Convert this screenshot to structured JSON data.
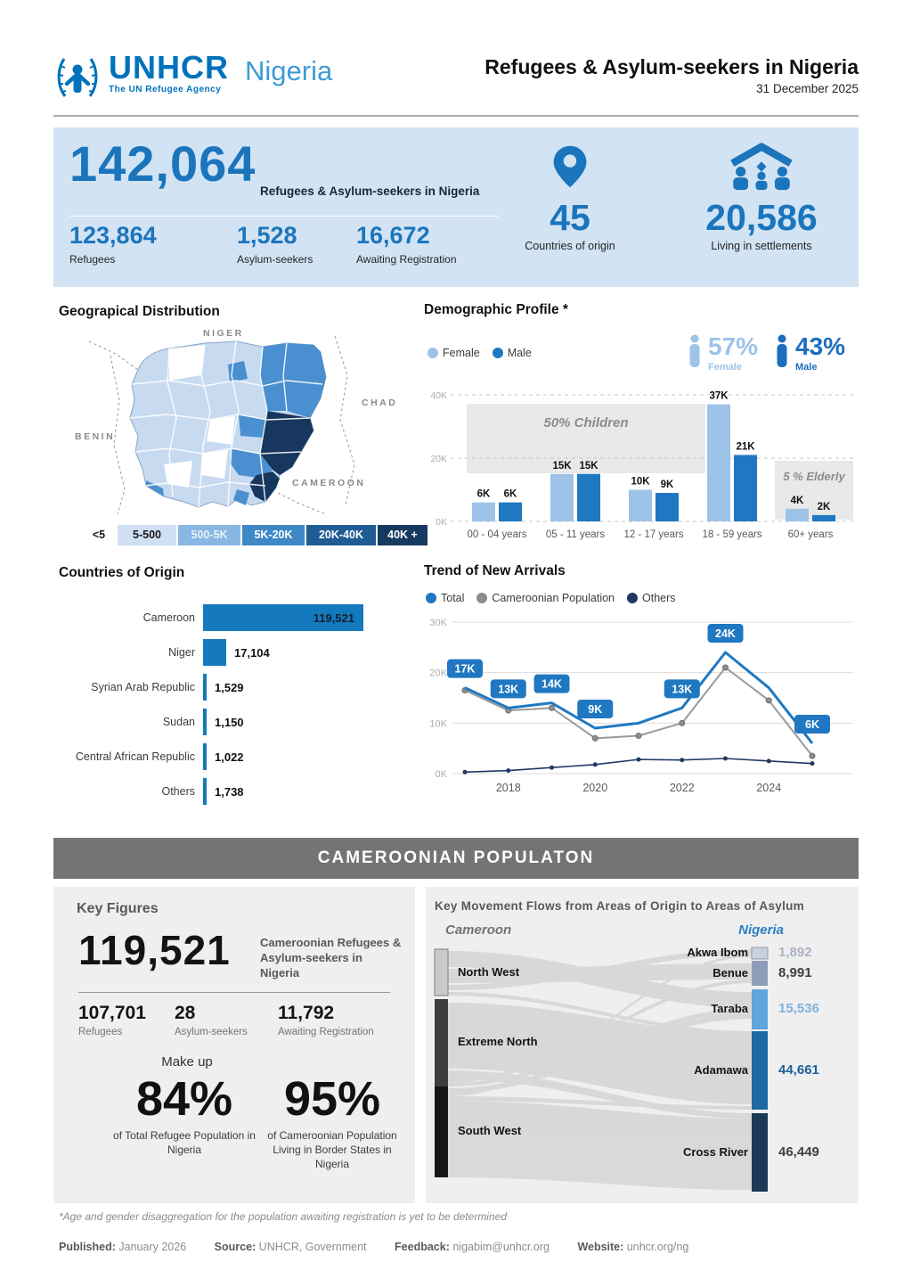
{
  "header": {
    "logo": {
      "name": "UNHCR",
      "tagline": "The UN Refugee Agency",
      "region": "Nigeria"
    },
    "title": "Refugees & Asylum-seekers in Nigeria",
    "date": "31 December 2025"
  },
  "summary": {
    "total": {
      "value": "142,064",
      "label": "Refugees & Asylum-seekers in Nigeria"
    },
    "breakdown": [
      {
        "value": "123,864",
        "label": "Refugees"
      },
      {
        "value": "1,528",
        "label": "Asylum-seekers"
      },
      {
        "value": "16,672",
        "label": "Awaiting Registration"
      }
    ],
    "origin_countries": {
      "value": "45",
      "label": "Countries of origin"
    },
    "settlements": {
      "value": "20,586",
      "label": "Living in settlements"
    }
  },
  "geography": {
    "title": "Geograpical Distribution",
    "neighbors": [
      "NIGER",
      "CHAD",
      "BENIN",
      "CAMEROON"
    ],
    "legend": [
      {
        "label": "<5",
        "color": "#ffffff",
        "text": "#1a1a1a"
      },
      {
        "label": "5-500",
        "color": "#cfe0f2",
        "text": "#1a1a1a"
      },
      {
        "label": "500-5K",
        "color": "#88b8e2",
        "text": "#e8f1fa"
      },
      {
        "label": "5K-20K",
        "color": "#3e88c6",
        "text": "#ffffff"
      },
      {
        "label": "20K-40K",
        "color": "#1f5c94",
        "text": "#ffffff"
      },
      {
        "label": "40K +",
        "color": "#16395f",
        "text": "#ffffff"
      }
    ]
  },
  "demographics": {
    "title": "Demographic Profile *",
    "legend": [
      {
        "label": "Female",
        "color": "#9dc3e8"
      },
      {
        "label": "Male",
        "color": "#1f78c1"
      }
    ],
    "female": {
      "pct": "57%",
      "label": "Female",
      "color": "#9dc3e8"
    },
    "male": {
      "pct": "43%",
      "label": "Male",
      "color": "#1b6fbe"
    },
    "annotations": {
      "children": "50% Children",
      "elderly": "5 % Elderly"
    }
  },
  "origins": {
    "title": "Countries of Origin"
  },
  "trend": {
    "title": "Trend of New Arrivals",
    "legend": [
      {
        "label": "Total",
        "color": "#1f78c1"
      },
      {
        "label": "Cameroonian Population",
        "color": "#8c8c8c"
      },
      {
        "label": "Others",
        "color": "#1f3864"
      }
    ]
  },
  "cameroonian": {
    "banner": "CAMEROONIAN POPULATON",
    "key_figures": {
      "title": "Key Figures",
      "total": {
        "value": "119,521",
        "label": "Cameroonian Refugees & Asylum-seekers in Nigeria"
      },
      "breakdown": [
        {
          "value": "107,701",
          "label": "Refugees"
        },
        {
          "value": "28",
          "label": "Asylum-seekers"
        },
        {
          "value": "11,792",
          "label": "Awaiting Registration"
        }
      ],
      "make_up": "Make up",
      "stats": [
        {
          "pct": "84%",
          "caption": "of Total Refugee Population in Nigeria"
        },
        {
          "pct": "95%",
          "caption": "of Cameroonian Population Living in Border States in Nigeria"
        }
      ]
    },
    "sankey": {
      "title": "Key Movement Flows from Areas of Origin to Areas of Asylum",
      "origin_label": "Cameroon",
      "asylum_label": "Nigeria",
      "sources": [
        "North West",
        "Extreme North",
        "South West"
      ],
      "destinations": [
        {
          "name": "Akwa Ibom",
          "value": "1,892",
          "value_color": "#aab3c3"
        },
        {
          "name": "Benue",
          "value": "8,991",
          "value_color": "#3f3f3f"
        },
        {
          "name": "Taraba",
          "value": "15,536",
          "value_color": "#7fb2de"
        },
        {
          "name": "Adamawa",
          "value": "44,661",
          "value_color": "#1d5f98"
        },
        {
          "name": "Cross River",
          "value": "46,449",
          "value_color": "#3f3f3f"
        }
      ]
    }
  },
  "footer": {
    "footnote": "*Age and gender disaggregation for the population awaiting registration is yet to be determined",
    "items": [
      {
        "label": "Published:",
        "value": "January 2026"
      },
      {
        "label": "Source:",
        "value": "UNHCR, Government"
      },
      {
        "label": "Feedback:",
        "value": "nigabim@unhcr.org"
      },
      {
        "label": "Website:",
        "value": "unhcr.org/ng"
      }
    ]
  },
  "chart_data": [
    {
      "id": "demographics",
      "type": "bar",
      "title": "Demographic Profile *",
      "categories": [
        "00 - 04 years",
        "05 - 11 years",
        "12 - 17 years",
        "18 - 59 years",
        "60+ years"
      ],
      "series": [
        {
          "name": "Female",
          "color": "#9dc3e8",
          "values": [
            6,
            15,
            10,
            37,
            4
          ]
        },
        {
          "name": "Male",
          "color": "#1f78c1",
          "values": [
            6,
            15,
            9,
            21,
            2
          ]
        }
      ],
      "value_labels": [
        [
          "6K",
          "6K"
        ],
        [
          "15K",
          "15K"
        ],
        [
          "10K",
          "9K"
        ],
        [
          "37K",
          "21K"
        ],
        [
          "4K",
          "2K"
        ]
      ],
      "unit": "K",
      "yticks": [
        "0K",
        "20K",
        "40K"
      ],
      "ylim": [
        0,
        40
      ],
      "grid": "dashed",
      "legend_position": "top-left"
    },
    {
      "id": "origins",
      "type": "bar",
      "title": "Countries of Origin",
      "orientation": "horizontal",
      "categories": [
        "Cameroon",
        "Niger",
        "Syrian Arab Republic",
        "Sudan",
        "Central African Republic",
        "Others"
      ],
      "values": [
        119521,
        17104,
        1529,
        1150,
        1022,
        1738
      ],
      "labels": [
        "119,521",
        "17,104",
        "1,529",
        "1,150",
        "1,022",
        "1,738"
      ]
    },
    {
      "id": "trend",
      "type": "line",
      "title": "Trend of New Arrivals",
      "x": [
        2017,
        2018,
        2019,
        2020,
        2021,
        2022,
        2023,
        2024,
        2025
      ],
      "xticks": [
        "2018",
        "2020",
        "2022",
        "2024"
      ],
      "yticks": [
        "0K",
        "10K",
        "20K",
        "30K"
      ],
      "ylim": [
        0,
        30
      ],
      "series": [
        {
          "name": "Total",
          "color": "#1f78c1",
          "values": [
            17,
            13,
            14,
            9,
            10,
            13,
            24,
            17,
            6
          ]
        },
        {
          "name": "Cameroonian Population",
          "color": "#9a9a9a",
          "values": [
            16.5,
            12.5,
            13,
            7,
            7.5,
            10,
            21,
            14.5,
            3.5
          ]
        },
        {
          "name": "Others",
          "color": "#1f3864",
          "values": [
            0.3,
            0.6,
            1.2,
            1.8,
            2.8,
            2.7,
            3,
            2.5,
            2
          ]
        }
      ],
      "point_labels": [
        {
          "x": 2017,
          "label": "17K"
        },
        {
          "x": 2018,
          "label": "13K"
        },
        {
          "x": 2019,
          "label": "14K"
        },
        {
          "x": 2020,
          "label": "9K"
        },
        {
          "x": 2022,
          "label": "13K"
        },
        {
          "x": 2023,
          "label": "24K"
        },
        {
          "x": 2025,
          "label": "6K"
        }
      ],
      "legend_position": "top-left"
    }
  ]
}
